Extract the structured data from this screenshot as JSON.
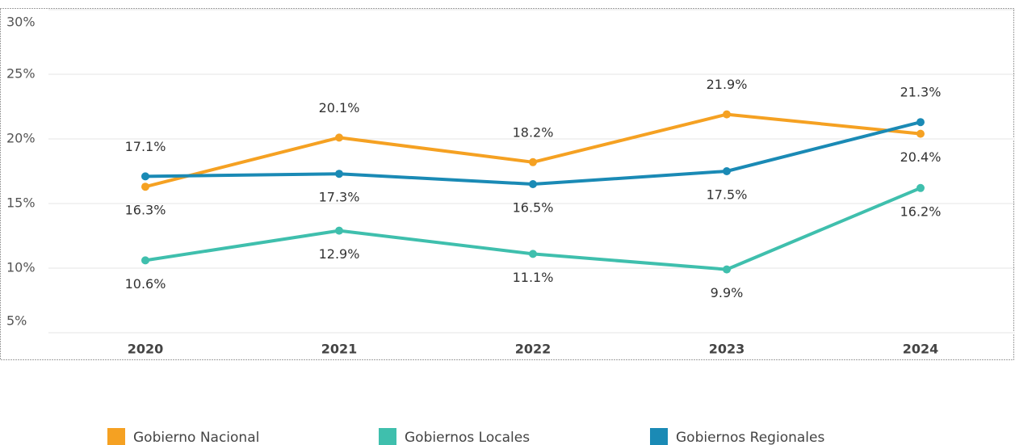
{
  "chart_data": {
    "type": "line",
    "categories": [
      "2020",
      "2021",
      "2022",
      "2023",
      "2024"
    ],
    "series": [
      {
        "name": "Gobierno Nacional",
        "color": "#f5a122",
        "values": [
          16.3,
          20.1,
          18.2,
          21.9,
          20.4
        ],
        "value_labels": [
          "16.3%",
          "20.1%",
          "18.2%",
          "21.9%",
          "20.4%"
        ]
      },
      {
        "name": "Gobiernos Locales",
        "color": "#3fbfad",
        "values": [
          10.6,
          12.9,
          11.1,
          9.9,
          16.2
        ],
        "value_labels": [
          "10.6%",
          "12.9%",
          "11.1%",
          "9.9%",
          "16.2%"
        ]
      },
      {
        "name": "Gobiernos Regionales",
        "color": "#1a8ab5",
        "values": [
          17.1,
          17.3,
          16.5,
          17.5,
          21.3
        ],
        "value_labels": [
          "17.1%",
          "17.3%",
          "16.5%",
          "17.5%",
          "21.3%"
        ]
      }
    ],
    "ylim": [
      5,
      30
    ],
    "yticks": [
      {
        "value": 5,
        "label": "5%"
      },
      {
        "value": 10,
        "label": "10%"
      },
      {
        "value": 15,
        "label": "15%"
      },
      {
        "value": 20,
        "label": "20%"
      },
      {
        "value": 25,
        "label": "25%"
      },
      {
        "value": 30,
        "label": "30%"
      }
    ],
    "grid": true,
    "legend": "bottom"
  }
}
